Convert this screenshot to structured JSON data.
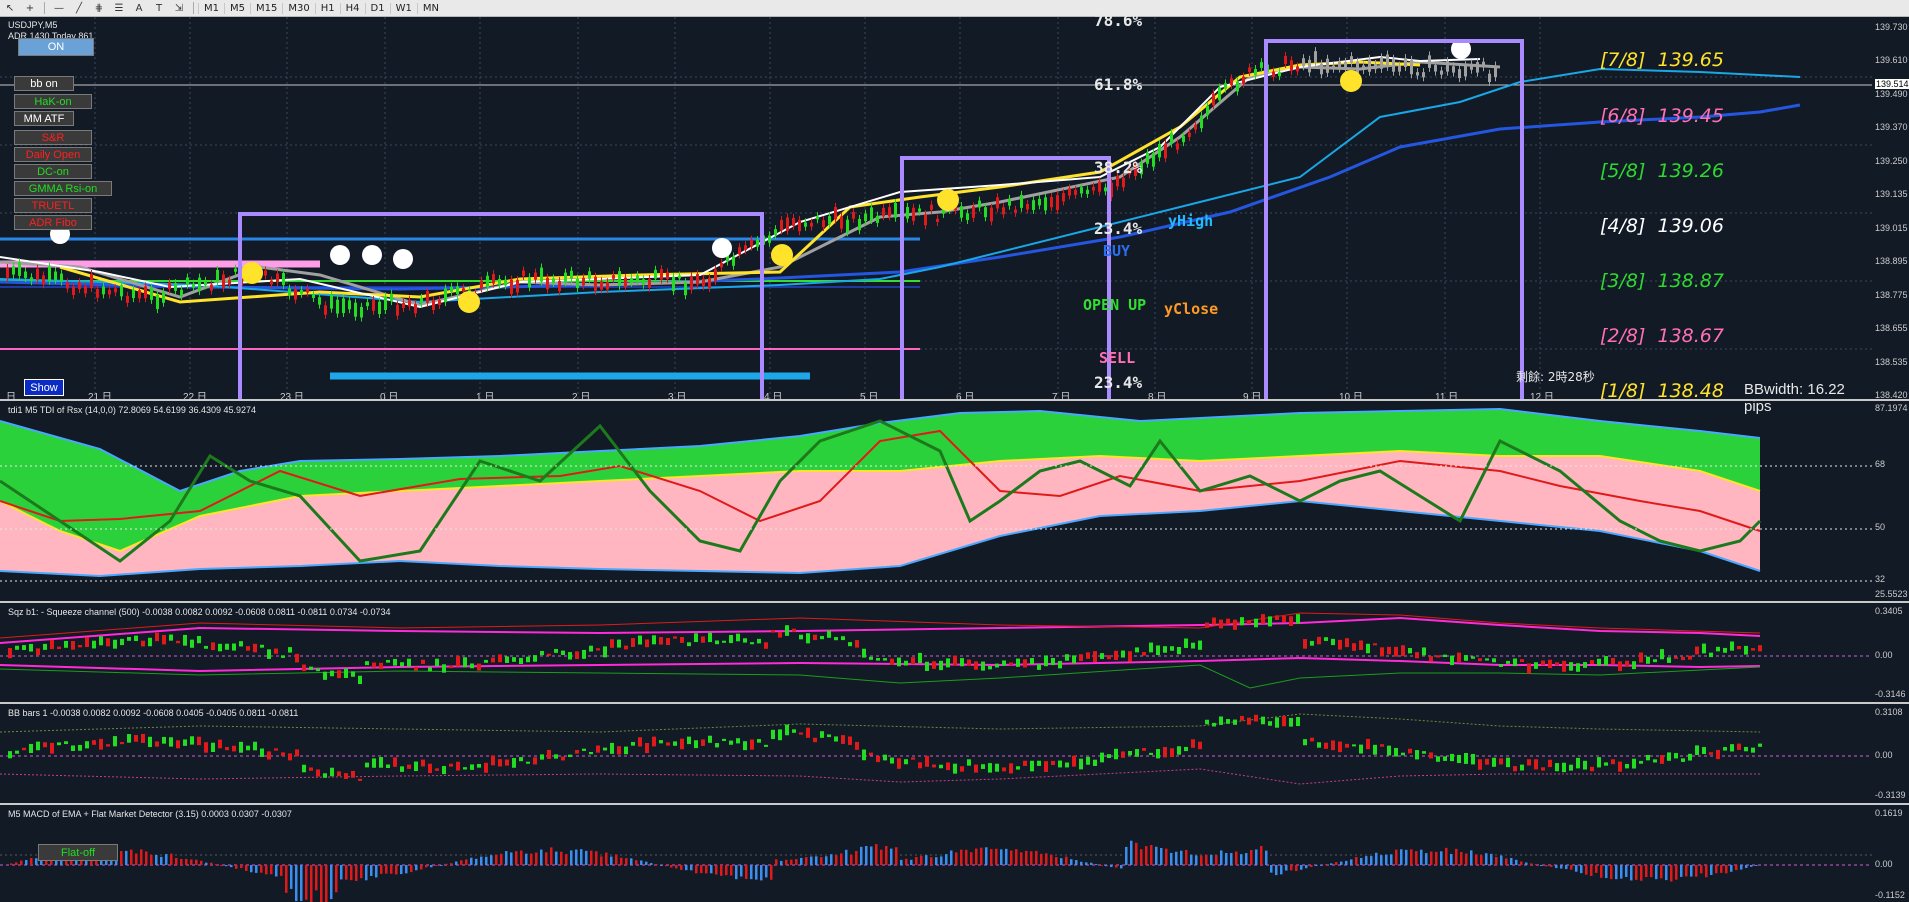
{
  "toolbar": {
    "icons": [
      "cursor-icon",
      "crosshair-icon",
      "horizontal-line-icon",
      "trendline-icon",
      "fibo-icon",
      "text-icon",
      "label-icon",
      "arrow-icon"
    ],
    "timeframes": [
      "M1",
      "M5",
      "M15",
      "M30",
      "H1",
      "H4",
      "D1",
      "W1",
      "MN"
    ]
  },
  "chart": {
    "symbol": "USDJPY,M5",
    "adr_text": "ADR 1430 Today 861",
    "buttons": [
      {
        "id": "on",
        "label": "ON",
        "color": "#ffffff",
        "bg": "#6aa2d8"
      },
      {
        "id": "bb",
        "label": "bb on",
        "color": "#ffffff",
        "bg": "#3a3a3a"
      },
      {
        "id": "hak",
        "label": "HaK-on",
        "color": "#22dd22",
        "bg": "#3a3a3a"
      },
      {
        "id": "mm",
        "label": "MM ATF",
        "color": "#ffffff",
        "bg": "#3a3a3a"
      },
      {
        "id": "sr",
        "label": "S&R",
        "color": "#ff2020",
        "bg": "#3a3a3a"
      },
      {
        "id": "daily",
        "label": "Daily Open",
        "color": "#ff2020",
        "bg": "#3a3a3a"
      },
      {
        "id": "dc",
        "label": "DC-on",
        "color": "#22dd22",
        "bg": "#3a3a3a"
      },
      {
        "id": "gmma",
        "label": "GMMA Rsi-on",
        "color": "#22dd22",
        "bg": "#3a3a3a"
      },
      {
        "id": "truetl",
        "label": "TRUETL",
        "color": "#ff2020",
        "bg": "#3a3a3a"
      },
      {
        "id": "adrfibo",
        "label": "ADR Fibo",
        "color": "#ff2020",
        "bg": "#3a3a3a"
      }
    ],
    "show_button": "Show",
    "fib_levels": [
      "78.6%",
      "61.8%",
      "38.2%",
      "23.4%",
      "23.4%"
    ],
    "labels": {
      "yhigh": "yHigh",
      "buy": "BUY",
      "open_up": "OPEN UP",
      "yclose": "yClose",
      "sell": "SELL"
    },
    "murrey": [
      {
        "text": "[7/8]  139.65",
        "color": "#ffe22a"
      },
      {
        "text": "[6/8]  139.45",
        "color": "#ff6fb5"
      },
      {
        "text": "[5/8]  139.26",
        "color": "#2fd82f"
      },
      {
        "text": "[4/8]  139.06",
        "color": "#ffffff"
      },
      {
        "text": "[3/8]  138.87",
        "color": "#2fd82f"
      },
      {
        "text": "[2/8]  138.67",
        "color": "#ff6fb5"
      },
      {
        "text": "[1/8]  138.48",
        "color": "#ffe22a"
      }
    ],
    "bbwidth": "BBwidth: 16.22 pips",
    "timer": "剩餘: 2時28秒",
    "price_axis": [
      "139.730",
      "139.610",
      "139.514",
      "139.490",
      "139.370",
      "139.250",
      "139.135",
      "139.015",
      "138.895",
      "138.775",
      "138.655",
      "138.535",
      "138.420"
    ],
    "days": [
      "日",
      "21 日",
      "22 日",
      "23 日",
      "0 日",
      "1 日",
      "2 日",
      "3 日",
      "4 日",
      "5 日",
      "6 日",
      "7 日",
      "8 日",
      "9 日",
      "10 日",
      "11 日",
      "12 日"
    ]
  },
  "tdi": {
    "title": "tdi1 M5 TDI of Rsx (14,0,0) 72.8069 54.6199 36.4309 45.9274",
    "axis": [
      "87.1974",
      "68",
      "50",
      "32",
      "25.5523"
    ]
  },
  "sqz": {
    "title": "Sqz b1: - Squeeze channel (500) -0.0038 0.0082 0.0092 -0.0608 0.0811 -0.0811 0.0734 -0.0734",
    "axis": [
      "0.3405",
      "0.00",
      "-0.3146"
    ]
  },
  "bb": {
    "title": "BB bars 1 -0.0038 0.0082 0.0092 -0.0608 0.0405 -0.0405 0.0811 -0.0811",
    "axis": [
      "0.3108",
      "0.00",
      "-0.3139"
    ]
  },
  "macd": {
    "title": "M5 MACD of EMA + Flat Market Detector (3.15) 0.0003 0.0307 -0.0307",
    "flat_button": "Flat-off",
    "axis": [
      "0.1619",
      "0.00",
      "-0.1152"
    ]
  }
}
